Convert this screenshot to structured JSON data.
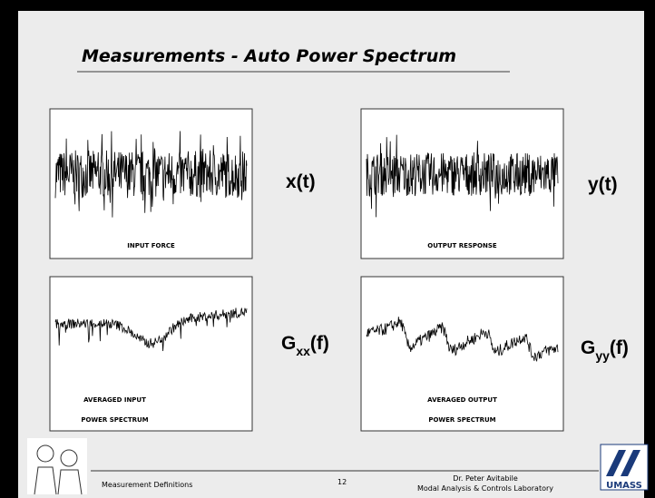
{
  "title": "Measurements - Auto Power Spectrum",
  "panels": [
    {
      "label_lines": [
        "INPUT FORCE"
      ],
      "symbol": {
        "main": "x(t)"
      }
    },
    {
      "label_lines": [
        "OUTPUT RESPONSE"
      ],
      "symbol": {
        "main": "y(t)"
      }
    },
    {
      "label_lines": [
        "AVERAGED INPUT",
        "POWER SPECTRUM"
      ],
      "symbol": {
        "main": "G",
        "sub": "xx",
        "rest": "(f)"
      }
    },
    {
      "label_lines": [
        "AVERAGED OUTPUT",
        "POWER SPECTRUM"
      ],
      "symbol": {
        "main": "G",
        "sub": "yy",
        "rest": "(f)"
      }
    }
  ],
  "footer": {
    "left": "Measurement Definitions",
    "page": "12",
    "right_lines": [
      "Dr. Peter Avitabile",
      "Modal Analysis & Controls Laboratory"
    ]
  },
  "logo": "UMASS"
}
